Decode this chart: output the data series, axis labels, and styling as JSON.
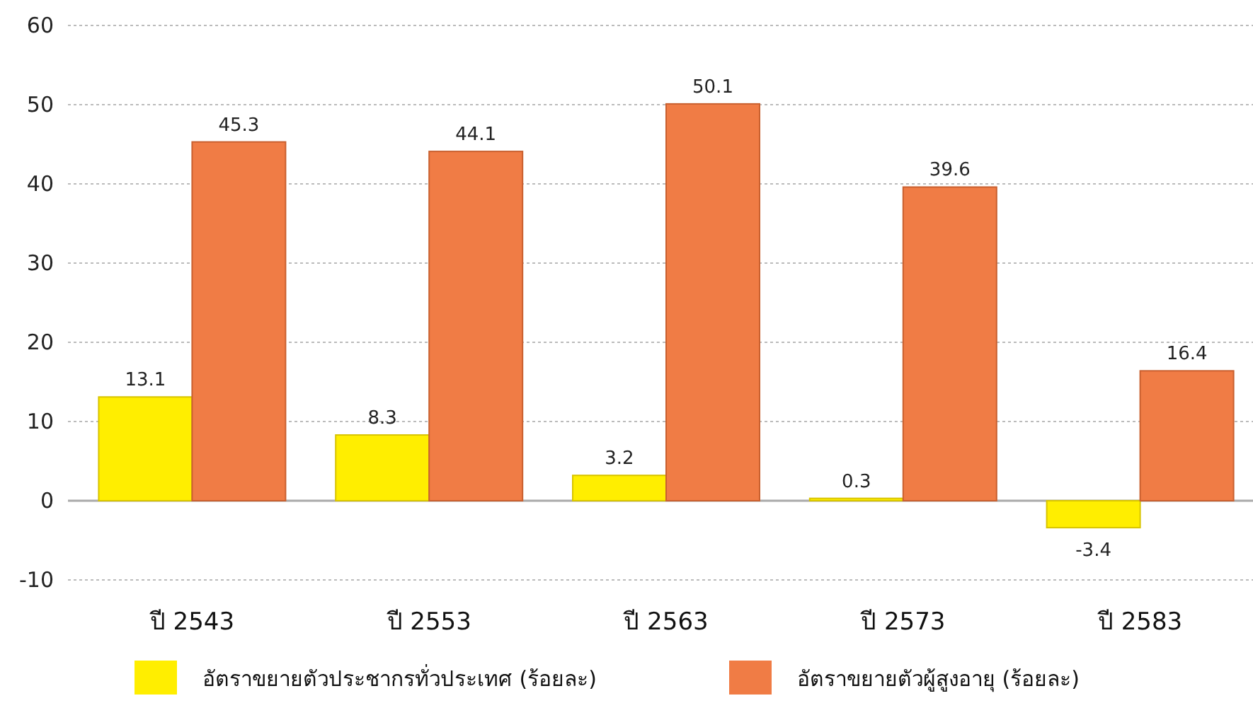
{
  "chart_data": {
    "type": "bar",
    "categories": [
      "ปี 2543",
      "ปี 2553",
      "ปี 2563",
      "ปี 2573",
      "ปี 2583"
    ],
    "series": [
      {
        "name": "อัตราขยายตัวประชากรทั่วประเทศ (ร้อยละ)",
        "color": "#ffee00",
        "values": [
          13.1,
          8.3,
          3.2,
          0.3,
          -3.4
        ]
      },
      {
        "name": "อัตราขยายตัวผู้สูงอายุ (ร้อยละ)",
        "color": "#f07c45",
        "values": [
          45.3,
          44.1,
          50.1,
          39.6,
          16.4
        ]
      }
    ],
    "ylim": [
      -10,
      60
    ],
    "yticks": [
      -10,
      0,
      10,
      20,
      30,
      40,
      50,
      60
    ],
    "grid": "y",
    "data_labels": true,
    "legend": "bottom"
  }
}
